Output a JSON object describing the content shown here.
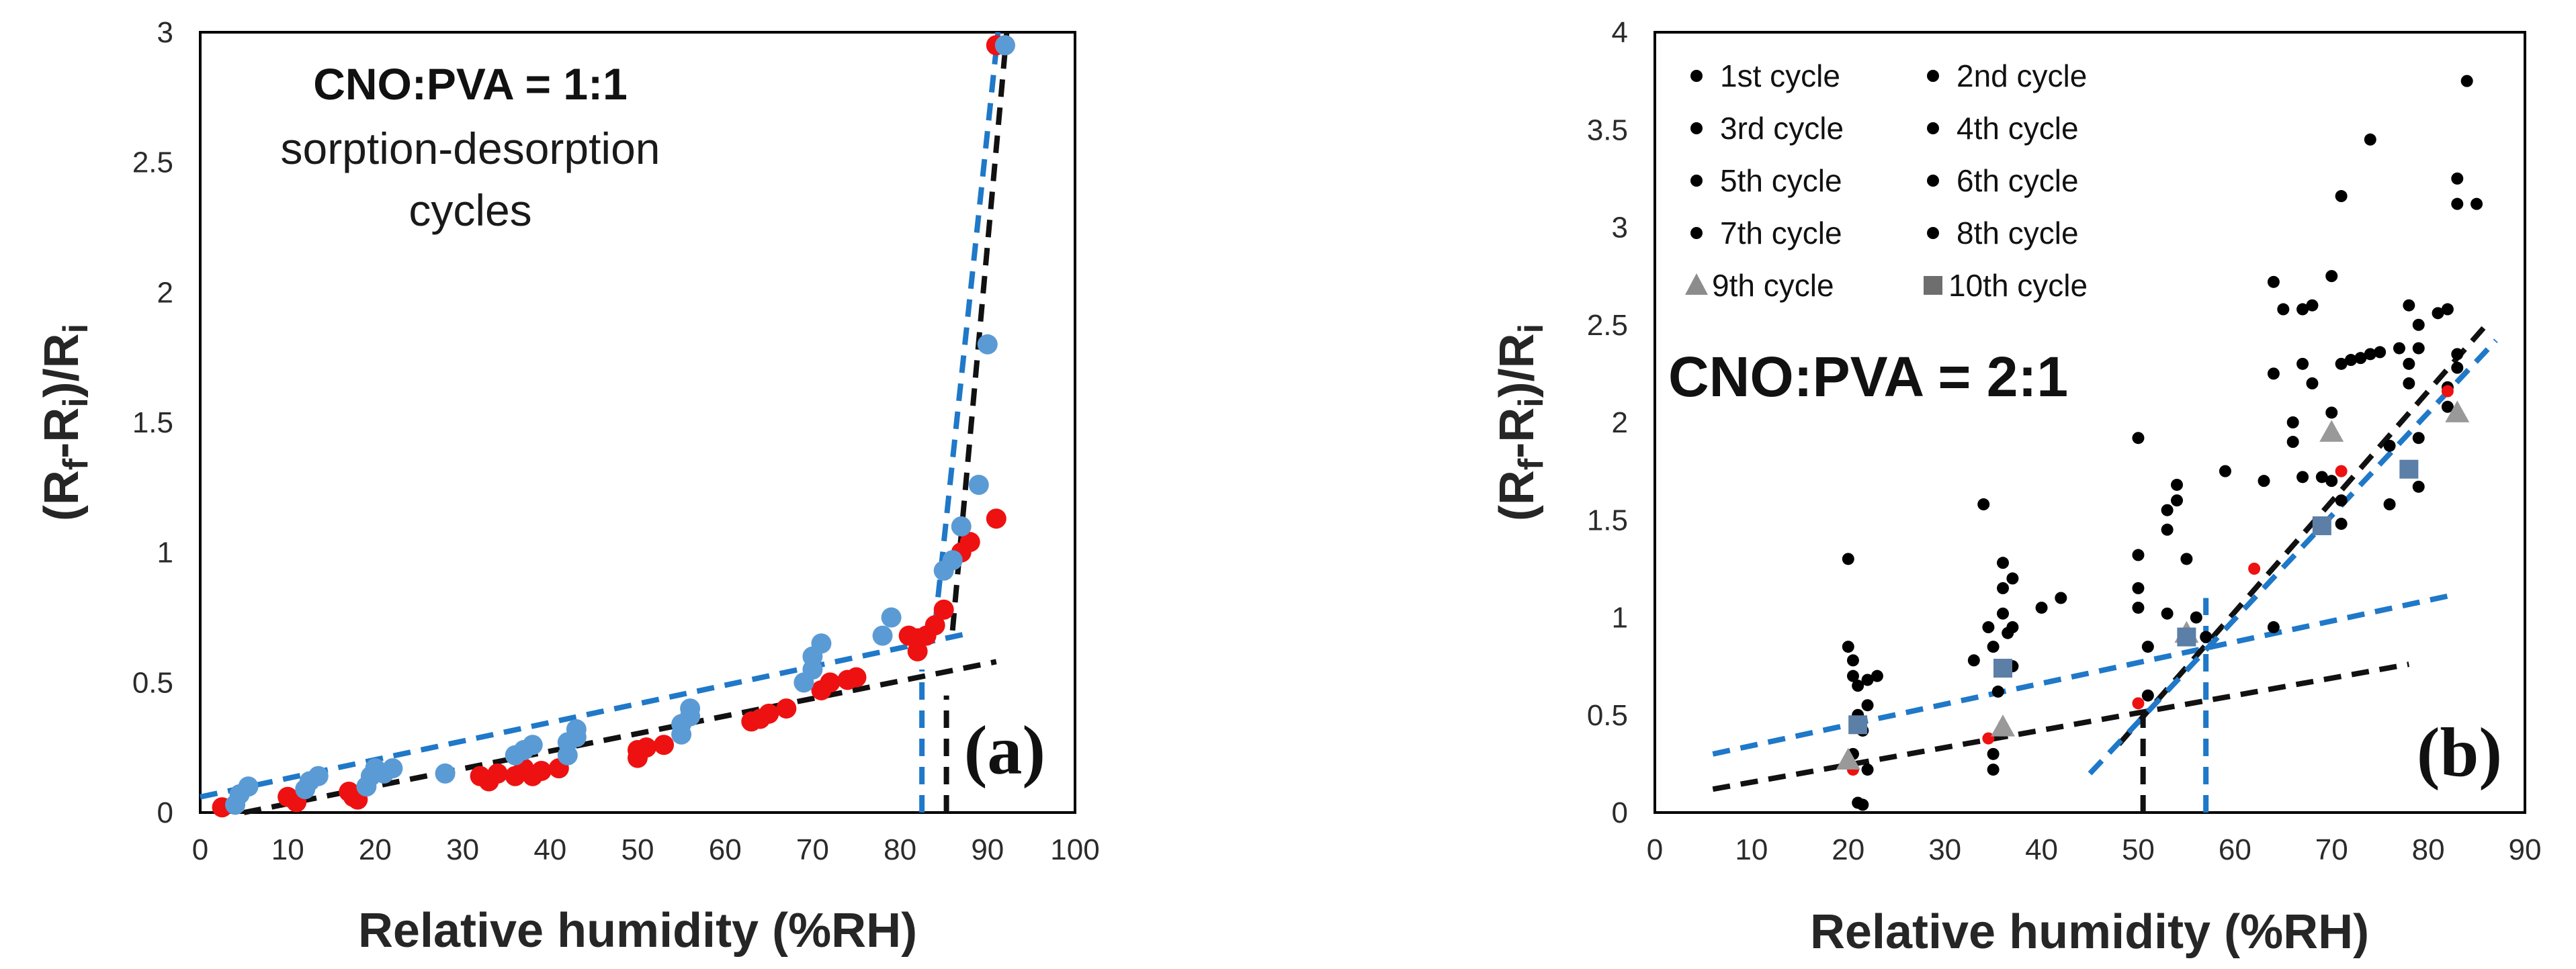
{
  "chart_data": [
    {
      "id": "a",
      "type": "scatter",
      "panel_label": "(a)",
      "title_line1": "CNO:PVA = 1:1",
      "title_line2": "sorption-desorption",
      "title_line3": "cycles",
      "xlabel": "Relative humidity (%RH)",
      "ylabel_parts": [
        "(R",
        "f",
        "-R",
        "i",
        ")/R",
        "i"
      ],
      "xlim": [
        0,
        100
      ],
      "ylim": [
        0,
        3
      ],
      "xticks": [
        0,
        10,
        20,
        30,
        40,
        50,
        60,
        70,
        80,
        90,
        100
      ],
      "yticks": [
        0,
        0.5,
        1,
        1.5,
        2,
        2.5,
        3
      ],
      "grid": false,
      "series": [
        {
          "name": "red points",
          "color": "#ee1111",
          "points": [
            [
              2.5,
              0.02
            ],
            [
              10,
              0.06
            ],
            [
              11,
              0.04
            ],
            [
              17,
              0.08
            ],
            [
              17.5,
              0.06
            ],
            [
              18,
              0.05
            ],
            [
              32,
              0.14
            ],
            [
              33,
              0.12
            ],
            [
              34,
              0.15
            ],
            [
              36,
              0.14
            ],
            [
              37,
              0.17
            ],
            [
              38,
              0.14
            ],
            [
              39,
              0.16
            ],
            [
              41,
              0.17
            ],
            [
              50,
              0.21
            ],
            [
              50,
              0.24
            ],
            [
              51,
              0.25
            ],
            [
              53,
              0.26
            ],
            [
              63,
              0.35
            ],
            [
              64,
              0.36
            ],
            [
              65,
              0.38
            ],
            [
              67,
              0.4
            ],
            [
              71,
              0.47
            ],
            [
              72,
              0.5
            ],
            [
              74,
              0.51
            ],
            [
              75,
              0.52
            ],
            [
              81,
              0.68
            ],
            [
              82,
              0.67
            ],
            [
              82,
              0.62
            ],
            [
              83,
              0.68
            ],
            [
              84,
              0.72
            ],
            [
              85,
              0.78
            ],
            [
              87,
              1.0
            ],
            [
              88,
              1.04
            ],
            [
              91,
              1.13
            ],
            [
              91,
              2.95
            ],
            [
              92,
              2.95
            ]
          ]
        },
        {
          "name": "blue points",
          "color": "#5b9bd5",
          "points": [
            [
              4,
              0.03
            ],
            [
              4.5,
              0.07
            ],
            [
              5.5,
              0.1
            ],
            [
              12,
              0.09
            ],
            [
              12.5,
              0.12
            ],
            [
              13.5,
              0.14
            ],
            [
              19,
              0.1
            ],
            [
              19.5,
              0.14
            ],
            [
              20,
              0.17
            ],
            [
              21,
              0.15
            ],
            [
              22,
              0.17
            ],
            [
              28,
              0.15
            ],
            [
              36,
              0.22
            ],
            [
              37,
              0.24
            ],
            [
              38,
              0.26
            ],
            [
              42,
              0.22
            ],
            [
              42,
              0.27
            ],
            [
              43,
              0.29
            ],
            [
              43,
              0.32
            ],
            [
              55,
              0.3
            ],
            [
              55,
              0.34
            ],
            [
              56,
              0.37
            ],
            [
              56,
              0.4
            ],
            [
              69,
              0.5
            ],
            [
              70,
              0.55
            ],
            [
              70,
              0.6
            ],
            [
              71,
              0.65
            ],
            [
              78,
              0.68
            ],
            [
              79,
              0.75
            ],
            [
              85,
              0.93
            ],
            [
              86,
              0.97
            ],
            [
              87,
              1.1
            ],
            [
              89,
              1.26
            ],
            [
              90,
              1.8
            ],
            [
              92,
              2.95
            ]
          ]
        }
      ],
      "lines": [
        {
          "color": "#1f78c8",
          "points": [
            [
              0,
              0.06
            ],
            [
              88,
              0.69
            ]
          ]
        },
        {
          "color": "#111111",
          "points": [
            [
              5,
              0.0
            ],
            [
              91,
              0.58
            ]
          ]
        },
        {
          "color": "#1f78c8",
          "points": [
            [
              84,
              0.72
            ],
            [
              91.2,
              3.0
            ]
          ]
        },
        {
          "color": "#111111",
          "points": [
            [
              86,
              0.7
            ],
            [
              92.2,
              3.0
            ]
          ]
        },
        {
          "color": "#1f78c8",
          "points": [
            [
              82.5,
              0.0
            ],
            [
              82.5,
              0.55
            ]
          ]
        },
        {
          "color": "#111111",
          "points": [
            [
              85.3,
              0.0
            ],
            [
              85.3,
              0.45
            ]
          ]
        }
      ]
    },
    {
      "id": "b",
      "type": "scatter",
      "panel_label": "(b)",
      "title": "CNO:PVA = 2:1",
      "xlabel": "Relative humidity (%RH)",
      "ylabel_parts": [
        "(R",
        "f",
        "-R",
        "i",
        ")/R",
        "i"
      ],
      "xlim": [
        0,
        90
      ],
      "ylim": [
        0,
        4
      ],
      "xticks": [
        0,
        10,
        20,
        30,
        40,
        50,
        60,
        70,
        80,
        90
      ],
      "yticks": [
        0,
        0.5,
        1,
        1.5,
        2,
        2.5,
        3,
        3.5,
        4
      ],
      "grid": false,
      "legend_position": "top-left",
      "legend": [
        {
          "label": "1st cycle",
          "marker": "circle",
          "color": "#000000"
        },
        {
          "label": "2nd cycle",
          "marker": "circle",
          "color": "#000000"
        },
        {
          "label": "3rd cycle",
          "marker": "circle",
          "color": "#000000"
        },
        {
          "label": "4th cycle",
          "marker": "circle",
          "color": "#000000"
        },
        {
          "label": "5th cycle",
          "marker": "circle",
          "color": "#000000"
        },
        {
          "label": "6th cycle",
          "marker": "circle",
          "color": "#000000"
        },
        {
          "label": "7th cycle",
          "marker": "circle",
          "color": "#000000"
        },
        {
          "label": "8th cycle",
          "marker": "circle",
          "color": "#000000"
        },
        {
          "label": "9th cycle",
          "marker": "triangle",
          "color": "#8c8c8c"
        },
        {
          "label": "10th cycle",
          "marker": "square",
          "color": "#6e6e6e"
        }
      ],
      "series": [
        {
          "name": "1st-8th cycles",
          "marker": "circle",
          "color": "#000000",
          "points": [
            [
              20,
              1.3
            ],
            [
              20,
              0.85
            ],
            [
              20.5,
              0.78
            ],
            [
              20.5,
              0.7
            ],
            [
              21,
              0.65
            ],
            [
              21,
              0.5
            ],
            [
              21.5,
              0.42
            ],
            [
              21,
              0.05
            ],
            [
              21.5,
              0.04
            ],
            [
              22,
              0.68
            ],
            [
              22,
              0.55
            ],
            [
              23,
              0.7
            ],
            [
              20.5,
              0.3
            ],
            [
              22,
              0.22
            ],
            [
              33,
              0.78
            ],
            [
              34,
              1.58
            ],
            [
              34.5,
              0.95
            ],
            [
              35,
              0.85
            ],
            [
              35,
              0.3
            ],
            [
              35,
              0.22
            ],
            [
              35.5,
              0.62
            ],
            [
              36,
              1.28
            ],
            [
              36,
              1.15
            ],
            [
              36,
              1.02
            ],
            [
              36.5,
              0.92
            ],
            [
              37,
              1.2
            ],
            [
              37,
              0.95
            ],
            [
              37,
              0.75
            ],
            [
              40,
              1.05
            ],
            [
              42,
              1.1
            ],
            [
              50,
              1.92
            ],
            [
              50,
              1.32
            ],
            [
              50,
              1.15
            ],
            [
              50,
              1.05
            ],
            [
              51,
              0.85
            ],
            [
              51,
              0.6
            ],
            [
              53,
              1.55
            ],
            [
              53,
              1.45
            ],
            [
              53,
              1.02
            ],
            [
              54,
              1.68
            ],
            [
              54,
              1.6
            ],
            [
              55,
              1.3
            ],
            [
              56,
              1.0
            ],
            [
              57,
              0.9
            ],
            [
              59,
              1.75
            ],
            [
              63,
              1.7
            ],
            [
              64,
              2.72
            ],
            [
              64,
              2.25
            ],
            [
              64,
              0.95
            ],
            [
              65,
              2.58
            ],
            [
              66,
              2.0
            ],
            [
              66,
              1.9
            ],
            [
              67,
              2.58
            ],
            [
              67,
              2.3
            ],
            [
              67,
              1.72
            ],
            [
              68,
              2.6
            ],
            [
              68,
              2.2
            ],
            [
              69,
              1.72
            ],
            [
              70,
              2.75
            ],
            [
              70,
              2.05
            ],
            [
              70,
              1.7
            ],
            [
              71,
              3.16
            ],
            [
              71,
              2.3
            ],
            [
              71,
              1.6
            ],
            [
              71,
              1.48
            ],
            [
              72,
              2.32
            ],
            [
              73,
              2.33
            ],
            [
              74,
              3.45
            ],
            [
              74,
              2.35
            ],
            [
              75,
              2.36
            ],
            [
              76,
              1.88
            ],
            [
              76,
              1.58
            ],
            [
              77,
              2.38
            ],
            [
              78,
              2.6
            ],
            [
              78,
              2.3
            ],
            [
              78,
              2.2
            ],
            [
              79,
              2.5
            ],
            [
              79,
              2.38
            ],
            [
              79,
              1.92
            ],
            [
              79,
              1.67
            ],
            [
              81,
              2.56
            ],
            [
              82,
              2.58
            ],
            [
              82,
              2.18
            ],
            [
              82,
              2.08
            ],
            [
              83,
              3.25
            ],
            [
              83,
              3.12
            ],
            [
              83,
              2.35
            ],
            [
              83,
              2.28
            ],
            [
              84,
              3.75
            ],
            [
              85,
              3.12
            ]
          ]
        },
        {
          "name": "red points",
          "marker": "circle",
          "color": "#ee1111",
          "points": [
            [
              20.5,
              0.22
            ],
            [
              34.5,
              0.38
            ],
            [
              50,
              0.56
            ],
            [
              62,
              1.25
            ],
            [
              71,
              1.75
            ],
            [
              82,
              2.16
            ]
          ]
        },
        {
          "name": "9th cycle",
          "marker": "triangle",
          "color": "#999999",
          "points": [
            [
              20,
              0.27
            ],
            [
              36,
              0.44
            ],
            [
              55,
              0.92
            ],
            [
              70,
              1.95
            ],
            [
              83,
              2.05
            ]
          ]
        },
        {
          "name": "10th cycle",
          "marker": "square",
          "color": "#5b7fa6",
          "points": [
            [
              21,
              0.45
            ],
            [
              36,
              0.74
            ],
            [
              55,
              0.9
            ],
            [
              69,
              1.47
            ],
            [
              78,
              1.76
            ]
          ]
        }
      ],
      "lines": [
        {
          "color": "#1f78c8",
          "points": [
            [
              6,
              0.3
            ],
            [
              83,
              1.12
            ]
          ]
        },
        {
          "color": "#111111",
          "points": [
            [
              6,
              0.12
            ],
            [
              78,
              0.76
            ]
          ]
        },
        {
          "color": "#111111",
          "points": [
            [
              48,
              0.35
            ],
            [
              86,
              2.5
            ]
          ]
        },
        {
          "color": "#1f78c8",
          "points": [
            [
              45,
              0.2
            ],
            [
              87,
              2.42
            ]
          ]
        },
        {
          "color": "#111111",
          "points": [
            [
              50.5,
              0.0
            ],
            [
              50.5,
              0.52
            ]
          ]
        },
        {
          "color": "#1f78c8",
          "points": [
            [
              57,
              0.0
            ],
            [
              57,
              1.1
            ]
          ]
        }
      ]
    }
  ]
}
